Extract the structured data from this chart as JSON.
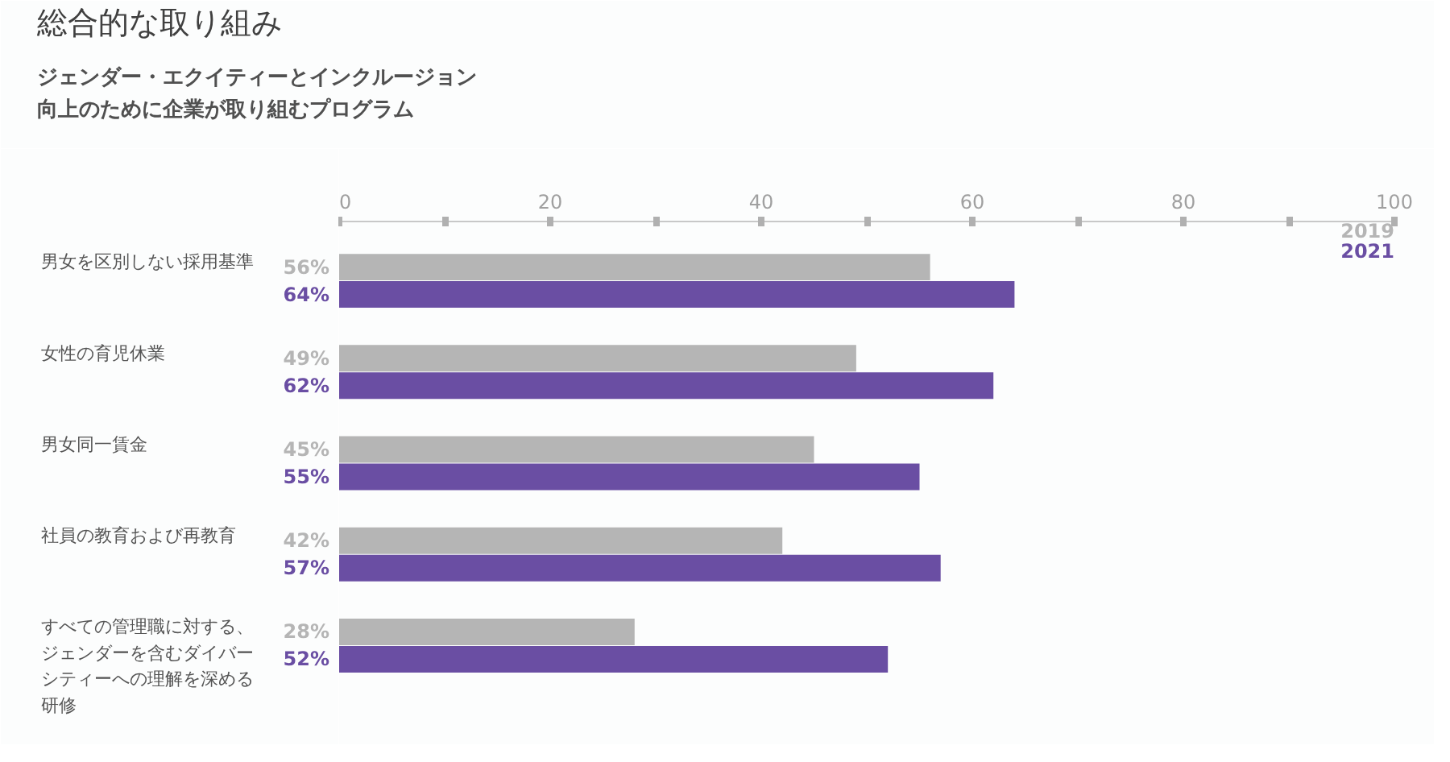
{
  "chart_data": {
    "type": "bar",
    "orientation": "horizontal",
    "title": "総合的な取り組み",
    "subtitle": "ジェンダー・エクイティーとインクルージョン向上のために企業が取り組むプログラム",
    "categories": [
      "男女を区別しない採用基準",
      "女性の育児休業",
      "男女同一賃金",
      "社員の教育および再教育",
      "すべての管理職に対する、ジェンダーを含むダイバーシティーへの理解を深める研修"
    ],
    "series": [
      {
        "name": "2019",
        "color": "#b5b5b5",
        "values": [
          56,
          49,
          45,
          42,
          28
        ],
        "value_labels": [
          "56%",
          "49%",
          "45%",
          "42%",
          "28%"
        ]
      },
      {
        "name": "2021",
        "color": "#6a4ea3",
        "values": [
          64,
          62,
          55,
          57,
          52
        ],
        "value_labels": [
          "64%",
          "62%",
          "55%",
          "57%",
          "52%"
        ]
      }
    ],
    "xlim": [
      0,
      100
    ],
    "xticks": [
      0,
      20,
      40,
      60,
      80,
      100
    ],
    "grid": false,
    "legend": "top right"
  }
}
